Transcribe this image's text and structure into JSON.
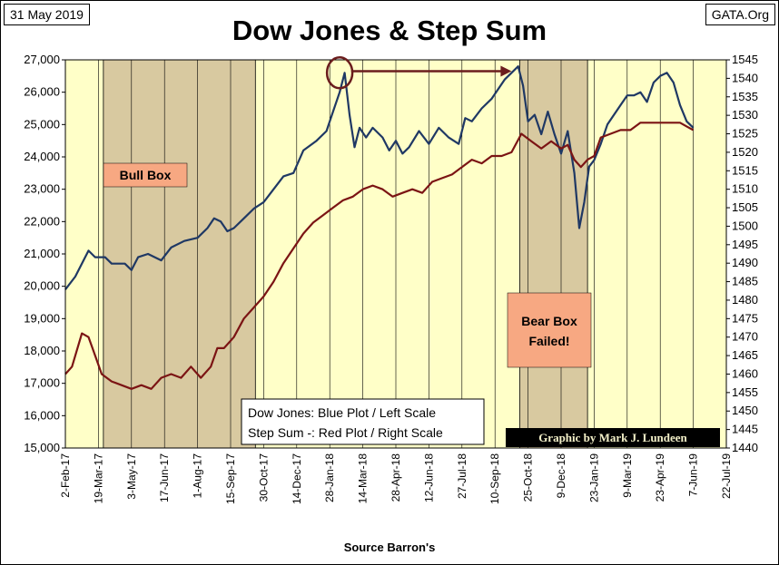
{
  "header": {
    "date": "31 May 2019",
    "source": "GATA.Org",
    "title": "Dow Jones & Step Sum"
  },
  "legend": {
    "line1": "Dow Jones: Blue Plot / Left Scale",
    "line2": "Step Sum -: Red Plot / Right Scale"
  },
  "annotations": {
    "bull_box": "Bull Box",
    "bear_box_line1": "Bear Box",
    "bear_box_line2": "Failed!",
    "credit": "Graphic by Mark J. Lundeen"
  },
  "colors": {
    "plot_bg": "#ffffc8",
    "box_fill": "#d8c9a0",
    "label_fill": "#f7a882",
    "dow": "#1f3864",
    "step": "#7b1414",
    "arrow": "#6b1d1d"
  },
  "chart_data": {
    "type": "line",
    "title": "Dow Jones & Step Sum",
    "xlabel": "Source Barron's",
    "x_ticks": [
      "2-Feb-17",
      "19-Mar-17",
      "3-May-17",
      "17-Jun-17",
      "1-Aug-17",
      "15-Sep-17",
      "30-Oct-17",
      "14-Dec-17",
      "28-Jan-18",
      "14-Mar-18",
      "28-Apr-18",
      "12-Jun-18",
      "27-Jul-18",
      "10-Sep-18",
      "25-Oct-18",
      "9-Dec-18",
      "23-Jan-19",
      "9-Mar-19",
      "23-Apr-19",
      "7-Jun-19",
      "22-Jul-19"
    ],
    "x_range": [
      0,
      20
    ],
    "left_axis": {
      "label": "Dow Jones",
      "min": 15000,
      "max": 27000,
      "ticks": [
        "15,000",
        "16,000",
        "17,000",
        "18,000",
        "19,000",
        "20,000",
        "21,000",
        "22,000",
        "23,000",
        "24,000",
        "25,000",
        "26,000",
        "27,000"
      ]
    },
    "right_axis": {
      "label": "Step Sum",
      "min": 1440,
      "max": 1545,
      "ticks": [
        "1440",
        "1445",
        "1450",
        "1455",
        "1460",
        "1465",
        "1470",
        "1475",
        "1480",
        "1485",
        "1490",
        "1495",
        "1500",
        "1505",
        "1510",
        "1515",
        "1520",
        "1525",
        "1530",
        "1535",
        "1540",
        "1545"
      ]
    },
    "series": [
      {
        "name": "Dow Jones",
        "axis": "left",
        "points": [
          [
            0,
            19900
          ],
          [
            0.3,
            20300
          ],
          [
            0.55,
            20800
          ],
          [
            0.7,
            21100
          ],
          [
            0.9,
            20900
          ],
          [
            1.2,
            20900
          ],
          [
            1.4,
            20700
          ],
          [
            1.8,
            20700
          ],
          [
            2.0,
            20500
          ],
          [
            2.2,
            20900
          ],
          [
            2.5,
            21000
          ],
          [
            2.9,
            20800
          ],
          [
            3.2,
            21200
          ],
          [
            3.6,
            21400
          ],
          [
            4.0,
            21500
          ],
          [
            4.3,
            21800
          ],
          [
            4.5,
            22100
          ],
          [
            4.7,
            22000
          ],
          [
            4.9,
            21700
          ],
          [
            5.1,
            21800
          ],
          [
            5.4,
            22100
          ],
          [
            5.7,
            22400
          ],
          [
            6.0,
            22600
          ],
          [
            6.3,
            23000
          ],
          [
            6.6,
            23400
          ],
          [
            6.9,
            23500
          ],
          [
            7.2,
            24200
          ],
          [
            7.6,
            24500
          ],
          [
            7.9,
            24800
          ],
          [
            8.1,
            25400
          ],
          [
            8.3,
            26000
          ],
          [
            8.45,
            26600
          ],
          [
            8.6,
            25300
          ],
          [
            8.75,
            24300
          ],
          [
            8.9,
            24900
          ],
          [
            9.1,
            24600
          ],
          [
            9.3,
            24900
          ],
          [
            9.6,
            24600
          ],
          [
            9.8,
            24200
          ],
          [
            10.0,
            24500
          ],
          [
            10.2,
            24100
          ],
          [
            10.4,
            24300
          ],
          [
            10.7,
            24800
          ],
          [
            11.0,
            24400
          ],
          [
            11.3,
            24900
          ],
          [
            11.6,
            24600
          ],
          [
            11.9,
            24400
          ],
          [
            12.1,
            25200
          ],
          [
            12.3,
            25100
          ],
          [
            12.6,
            25500
          ],
          [
            12.9,
            25800
          ],
          [
            13.1,
            26100
          ],
          [
            13.3,
            26400
          ],
          [
            13.5,
            26600
          ],
          [
            13.7,
            26800
          ],
          [
            13.85,
            26200
          ],
          [
            14.0,
            25100
          ],
          [
            14.2,
            25300
          ],
          [
            14.4,
            24700
          ],
          [
            14.6,
            25400
          ],
          [
            14.8,
            24700
          ],
          [
            15.0,
            24100
          ],
          [
            15.2,
            24800
          ],
          [
            15.4,
            23500
          ],
          [
            15.55,
            21800
          ],
          [
            15.7,
            22600
          ],
          [
            15.85,
            23700
          ],
          [
            16.0,
            23900
          ],
          [
            16.2,
            24400
          ],
          [
            16.4,
            25000
          ],
          [
            16.6,
            25300
          ],
          [
            16.8,
            25600
          ],
          [
            17.0,
            25900
          ],
          [
            17.2,
            25900
          ],
          [
            17.4,
            26000
          ],
          [
            17.6,
            25700
          ],
          [
            17.8,
            26300
          ],
          [
            18.0,
            26500
          ],
          [
            18.2,
            26600
          ],
          [
            18.4,
            26300
          ],
          [
            18.6,
            25600
          ],
          [
            18.8,
            25100
          ],
          [
            19.0,
            24900
          ]
        ]
      },
      {
        "name": "Step Sum",
        "axis": "right",
        "points": [
          [
            0,
            1460
          ],
          [
            0.2,
            1462
          ],
          [
            0.5,
            1471
          ],
          [
            0.7,
            1470
          ],
          [
            0.9,
            1465
          ],
          [
            1.1,
            1460
          ],
          [
            1.4,
            1458
          ],
          [
            1.7,
            1457
          ],
          [
            2.0,
            1456
          ],
          [
            2.3,
            1457
          ],
          [
            2.6,
            1456
          ],
          [
            2.9,
            1459
          ],
          [
            3.2,
            1460
          ],
          [
            3.5,
            1459
          ],
          [
            3.8,
            1462
          ],
          [
            4.1,
            1459
          ],
          [
            4.4,
            1462
          ],
          [
            4.6,
            1467
          ],
          [
            4.8,
            1467
          ],
          [
            5.1,
            1470
          ],
          [
            5.4,
            1475
          ],
          [
            5.7,
            1478
          ],
          [
            6.0,
            1481
          ],
          [
            6.3,
            1485
          ],
          [
            6.6,
            1490
          ],
          [
            6.9,
            1494
          ],
          [
            7.2,
            1498
          ],
          [
            7.5,
            1501
          ],
          [
            7.8,
            1503
          ],
          [
            8.1,
            1505
          ],
          [
            8.4,
            1507
          ],
          [
            8.7,
            1508
          ],
          [
            9.0,
            1510
          ],
          [
            9.3,
            1511
          ],
          [
            9.6,
            1510
          ],
          [
            9.9,
            1508
          ],
          [
            10.2,
            1509
          ],
          [
            10.5,
            1510
          ],
          [
            10.8,
            1509
          ],
          [
            11.1,
            1512
          ],
          [
            11.4,
            1513
          ],
          [
            11.7,
            1514
          ],
          [
            12.0,
            1516
          ],
          [
            12.3,
            1518
          ],
          [
            12.6,
            1517
          ],
          [
            12.9,
            1519
          ],
          [
            13.2,
            1519
          ],
          [
            13.5,
            1520
          ],
          [
            13.8,
            1525
          ],
          [
            14.1,
            1523
          ],
          [
            14.4,
            1521
          ],
          [
            14.7,
            1523
          ],
          [
            15.0,
            1521
          ],
          [
            15.2,
            1522
          ],
          [
            15.4,
            1518
          ],
          [
            15.6,
            1516
          ],
          [
            15.8,
            1518
          ],
          [
            16.0,
            1519
          ],
          [
            16.2,
            1524
          ],
          [
            16.5,
            1525
          ],
          [
            16.8,
            1526
          ],
          [
            17.1,
            1526
          ],
          [
            17.4,
            1528
          ],
          [
            17.7,
            1528
          ],
          [
            18.0,
            1528
          ],
          [
            18.3,
            1528
          ],
          [
            18.6,
            1528
          ],
          [
            18.8,
            1527
          ],
          [
            19.0,
            1526
          ]
        ]
      }
    ],
    "bull_box_range": [
      1.15,
      5.75
    ],
    "bear_box_range": [
      13.75,
      15.8
    ],
    "circle_highlight": {
      "x": 8.3,
      "y": 26600
    },
    "arrow": {
      "from_x": 8.65,
      "to_x": 13.5,
      "y": 26650
    }
  }
}
